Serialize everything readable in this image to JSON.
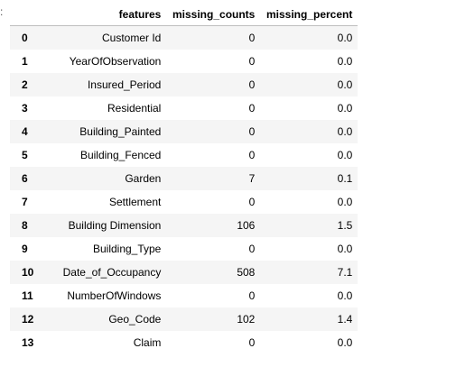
{
  "prompt_marker": ":",
  "table": {
    "columns": [
      "",
      "features",
      "missing_counts",
      "missing_percent"
    ],
    "rows": [
      {
        "index": "0",
        "features": "Customer Id",
        "missing_counts": "0",
        "missing_percent": "0.0"
      },
      {
        "index": "1",
        "features": "YearOfObservation",
        "missing_counts": "0",
        "missing_percent": "0.0"
      },
      {
        "index": "2",
        "features": "Insured_Period",
        "missing_counts": "0",
        "missing_percent": "0.0"
      },
      {
        "index": "3",
        "features": "Residential",
        "missing_counts": "0",
        "missing_percent": "0.0"
      },
      {
        "index": "4",
        "features": "Building_Painted",
        "missing_counts": "0",
        "missing_percent": "0.0"
      },
      {
        "index": "5",
        "features": "Building_Fenced",
        "missing_counts": "0",
        "missing_percent": "0.0"
      },
      {
        "index": "6",
        "features": "Garden",
        "missing_counts": "7",
        "missing_percent": "0.1"
      },
      {
        "index": "7",
        "features": "Settlement",
        "missing_counts": "0",
        "missing_percent": "0.0"
      },
      {
        "index": "8",
        "features": "Building Dimension",
        "missing_counts": "106",
        "missing_percent": "1.5"
      },
      {
        "index": "9",
        "features": "Building_Type",
        "missing_counts": "0",
        "missing_percent": "0.0"
      },
      {
        "index": "10",
        "features": "Date_of_Occupancy",
        "missing_counts": "508",
        "missing_percent": "7.1"
      },
      {
        "index": "11",
        "features": "NumberOfWindows",
        "missing_counts": "0",
        "missing_percent": "0.0"
      },
      {
        "index": "12",
        "features": "Geo_Code",
        "missing_counts": "102",
        "missing_percent": "1.4"
      },
      {
        "index": "13",
        "features": "Claim",
        "missing_counts": "0",
        "missing_percent": "0.0"
      }
    ]
  }
}
